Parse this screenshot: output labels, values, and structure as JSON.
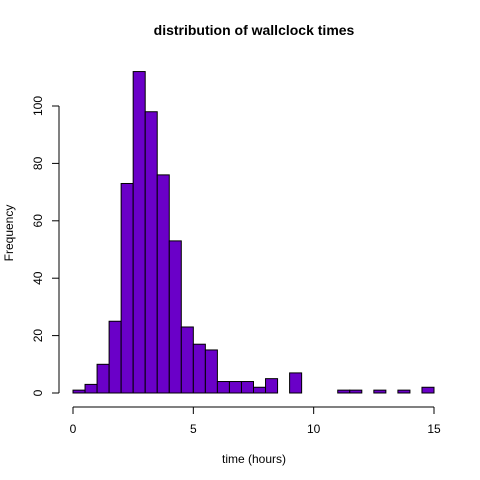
{
  "chart_data": {
    "type": "bar",
    "title": "distribution of wallclock times",
    "xlabel": "time (hours)",
    "ylabel": "Frequency",
    "bar_color": "#6a00c8",
    "bin_width": 0.5,
    "xlim": [
      0,
      15
    ],
    "ylim": [
      0,
      112
    ],
    "x_ticks": [
      0,
      5,
      10,
      15
    ],
    "y_ticks": [
      0,
      20,
      40,
      60,
      80,
      100
    ],
    "bins": [
      {
        "start": 0.0,
        "end": 0.5,
        "count": 1
      },
      {
        "start": 0.5,
        "end": 1.0,
        "count": 3
      },
      {
        "start": 1.0,
        "end": 1.5,
        "count": 10
      },
      {
        "start": 1.5,
        "end": 2.0,
        "count": 25
      },
      {
        "start": 2.0,
        "end": 2.5,
        "count": 73
      },
      {
        "start": 2.5,
        "end": 3.0,
        "count": 112
      },
      {
        "start": 3.0,
        "end": 3.5,
        "count": 98
      },
      {
        "start": 3.5,
        "end": 4.0,
        "count": 76
      },
      {
        "start": 4.0,
        "end": 4.5,
        "count": 53
      },
      {
        "start": 4.5,
        "end": 5.0,
        "count": 23
      },
      {
        "start": 5.0,
        "end": 5.5,
        "count": 17
      },
      {
        "start": 5.5,
        "end": 6.0,
        "count": 15
      },
      {
        "start": 6.0,
        "end": 6.5,
        "count": 4
      },
      {
        "start": 6.5,
        "end": 7.0,
        "count": 4
      },
      {
        "start": 7.0,
        "end": 7.5,
        "count": 4
      },
      {
        "start": 7.5,
        "end": 8.0,
        "count": 2
      },
      {
        "start": 8.0,
        "end": 8.5,
        "count": 5
      },
      {
        "start": 8.5,
        "end": 9.0,
        "count": 0
      },
      {
        "start": 9.0,
        "end": 9.5,
        "count": 7
      },
      {
        "start": 9.5,
        "end": 10.0,
        "count": 0
      },
      {
        "start": 10.0,
        "end": 10.5,
        "count": 0
      },
      {
        "start": 10.5,
        "end": 11.0,
        "count": 0
      },
      {
        "start": 11.0,
        "end": 11.5,
        "count": 1
      },
      {
        "start": 11.5,
        "end": 12.0,
        "count": 1
      },
      {
        "start": 12.0,
        "end": 12.5,
        "count": 0
      },
      {
        "start": 12.5,
        "end": 13.0,
        "count": 1
      },
      {
        "start": 13.0,
        "end": 13.5,
        "count": 0
      },
      {
        "start": 13.5,
        "end": 14.0,
        "count": 1
      },
      {
        "start": 14.0,
        "end": 14.5,
        "count": 0
      },
      {
        "start": 14.5,
        "end": 15.0,
        "count": 2
      }
    ]
  }
}
